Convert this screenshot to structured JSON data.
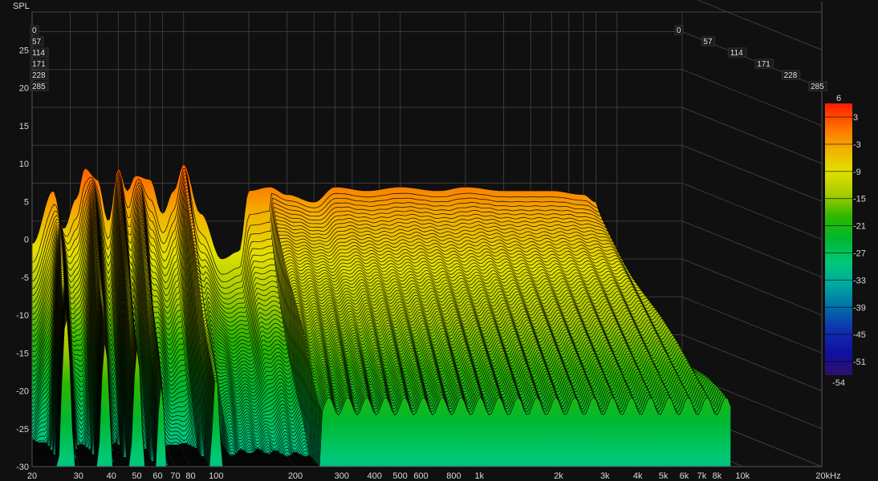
{
  "chart_data": {
    "type": "waterfall",
    "ylabel": "SPL",
    "x_scale": "log",
    "xlim": [
      20,
      20000
    ],
    "ylim": [
      -30,
      25
    ],
    "x_ticks": [
      "20",
      "30",
      "40",
      "50",
      "60",
      "70",
      "80",
      "100",
      "200",
      "300",
      "400",
      "500",
      "600",
      "800",
      "1k",
      "2k",
      "3k",
      "4k",
      "5k",
      "6k",
      "7k",
      "8k",
      "10k",
      "20kHz"
    ],
    "x_tick_values": [
      20,
      30,
      40,
      50,
      60,
      70,
      80,
      100,
      200,
      300,
      400,
      500,
      600,
      800,
      1000,
      2000,
      3000,
      4000,
      5000,
      6000,
      7000,
      8000,
      10000,
      20000
    ],
    "y_ticks": [
      -30,
      -25,
      -20,
      -15,
      -10,
      -5,
      0,
      5,
      10,
      15,
      20,
      25
    ],
    "time_ticks": [
      "0",
      "57",
      "114",
      "171",
      "228",
      "285"
    ],
    "time_range": [
      0,
      285
    ],
    "grid": true,
    "colorbar": {
      "max_label": "6",
      "min_label": "-54",
      "ticks": [
        "3",
        "-3",
        "-9",
        "-15",
        "-21",
        "-27",
        "-33",
        "-39",
        "-45",
        "-51"
      ],
      "colors": [
        "#ff1a00",
        "#ff6a00",
        "#f2b000",
        "#e2e000",
        "#a8cc00",
        "#2cb800",
        "#00b830",
        "#00c878",
        "#00a8a0",
        "#0070a8",
        "#1030b0",
        "#1010a0",
        "#30106a"
      ]
    },
    "initial_response": {
      "freq": [
        20,
        25,
        28,
        32,
        35,
        40,
        45,
        50,
        55,
        60,
        70,
        80,
        90,
        100,
        120,
        150,
        180,
        200,
        250,
        300,
        400,
        500,
        700,
        1000,
        1500,
        2000,
        3000,
        5000,
        7000,
        8000,
        8500,
        9000
      ],
      "spl": [
        -8,
        -1,
        -6,
        -2,
        2,
        0.5,
        -5,
        2,
        -1,
        1,
        0.5,
        -4,
        -1,
        2.5,
        -4,
        -10,
        -9,
        -1,
        -0.5,
        -1.5,
        -2.5,
        -0.5,
        -1,
        -0.5,
        -1,
        -0.5,
        -1,
        -1,
        -1.5,
        -2.5,
        -5,
        -12
      ]
    }
  }
}
